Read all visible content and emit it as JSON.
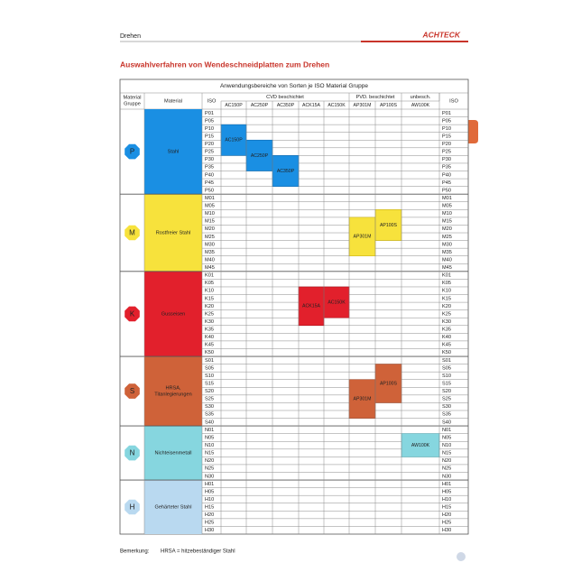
{
  "header": {
    "section": "Drehen",
    "brand": "ACHTECK"
  },
  "title": "Auswahlverfahren von Wendeschneidplatten zum Drehen",
  "table": {
    "caption": "Anwendungsbereiche von Sorten je ISO Material Gruppe",
    "headers": {
      "group": [
        "Material",
        "Gruppe"
      ],
      "material": "Material",
      "iso": "ISO",
      "iso_right": "ISO",
      "coating_groups": [
        "CVD beschichtet",
        "PVD. beschichtet",
        "unbesch."
      ],
      "grades": [
        "AC150P",
        "AC250P",
        "AC350P",
        "ACK15A",
        "AC150K",
        "AP301M",
        "AP100S",
        "AW100K"
      ]
    },
    "groups": [
      {
        "symbol": "P",
        "material": [
          "Stahl"
        ],
        "codes": [
          "P01",
          "P05",
          "P10",
          "P15",
          "P20",
          "P25",
          "P30",
          "P35",
          "P40",
          "P45",
          "P50"
        ],
        "blocks": [
          "AC150P",
          "AC250P",
          "AC350P"
        ]
      },
      {
        "symbol": "M",
        "material": [
          "Rostfreier Stahl"
        ],
        "codes": [
          "M01",
          "M05",
          "M10",
          "M15",
          "M20",
          "M25",
          "M30",
          "M35",
          "M40",
          "M45"
        ],
        "blocks": [
          "AP301M",
          "AP100S"
        ]
      },
      {
        "symbol": "K",
        "material": [
          "Gusseisen"
        ],
        "codes": [
          "K01",
          "K05",
          "K10",
          "K15",
          "K20",
          "K25",
          "K30",
          "K35",
          "K40",
          "K45",
          "K50"
        ],
        "blocks": [
          "ACK15A",
          "AC150K"
        ]
      },
      {
        "symbol": "S",
        "material": [
          "HRSA,",
          "Titanlegierungen"
        ],
        "codes": [
          "S01",
          "S05",
          "S10",
          "S15",
          "S20",
          "S25",
          "S30",
          "S35",
          "S40"
        ],
        "blocks": [
          "AP301M",
          "AP100S"
        ]
      },
      {
        "symbol": "N",
        "material": [
          "Nichteisenmetall"
        ],
        "codes": [
          "N01",
          "N05",
          "N10",
          "N15",
          "N20",
          "N25",
          "N30"
        ],
        "blocks": [
          "AW100K"
        ]
      },
      {
        "symbol": "H",
        "material": [
          "Gehärteter Stahl"
        ],
        "codes": [
          "H01",
          "H05",
          "H10",
          "H15",
          "H20",
          "H25",
          "H30"
        ],
        "blocks": []
      }
    ]
  },
  "footer": {
    "label": "Bemerkung:",
    "note": "HRSA = hitzebeständiger Stahl"
  }
}
